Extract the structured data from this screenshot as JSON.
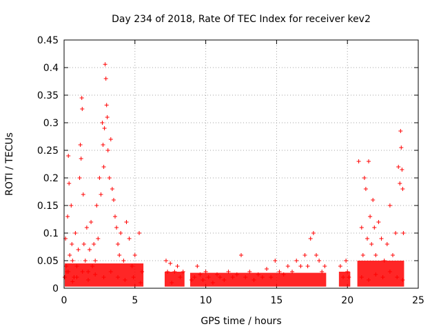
{
  "chart_data": {
    "type": "scatter",
    "title": "Day 234 of 2018, Rate Of TEC Index for receiver kev2",
    "xlabel": "GPS time / hours",
    "ylabel": "ROTI / TECUs",
    "xlim": [
      0,
      25
    ],
    "ylim": [
      0,
      0.45
    ],
    "xticks": [
      "0",
      "5",
      "10",
      "15",
      "20",
      "25"
    ],
    "yticks": [
      "0",
      "0.05",
      "0.1",
      "0.15",
      "0.2",
      "0.25",
      "0.3",
      "0.35",
      "0.4",
      "0.45"
    ],
    "grid": true,
    "marker": "+",
    "color": "#ff0000",
    "series": [
      {
        "points": [
          [
            0.05,
            0.02
          ],
          [
            0.1,
            0.09
          ],
          [
            0.15,
            0.04
          ],
          [
            0.2,
            0.03
          ],
          [
            0.25,
            0.13
          ],
          [
            0.3,
            0.24
          ],
          [
            0.35,
            0.19
          ],
          [
            0.4,
            0.06
          ],
          [
            0.5,
            0.15
          ],
          [
            0.55,
            0.08
          ],
          [
            0.6,
            0.05
          ],
          [
            0.7,
            0.02
          ],
          [
            0.8,
            0.1
          ],
          [
            0.9,
            0.04
          ],
          [
            1.0,
            0.07
          ],
          [
            1.1,
            0.2
          ],
          [
            1.15,
            0.26
          ],
          [
            1.2,
            0.235
          ],
          [
            1.25,
            0.345
          ],
          [
            1.28,
            0.325
          ],
          [
            1.35,
            0.17
          ],
          [
            1.4,
            0.08
          ],
          [
            1.5,
            0.05
          ],
          [
            1.6,
            0.11
          ],
          [
            1.7,
            0.03
          ],
          [
            1.8,
            0.07
          ],
          [
            1.9,
            0.12
          ],
          [
            2.0,
            0.04
          ],
          [
            2.1,
            0.08
          ],
          [
            2.2,
            0.05
          ],
          [
            2.3,
            0.15
          ],
          [
            2.4,
            0.09
          ],
          [
            2.5,
            0.2
          ],
          [
            2.6,
            0.17
          ],
          [
            2.7,
            0.3
          ],
          [
            2.75,
            0.26
          ],
          [
            2.8,
            0.22
          ],
          [
            2.85,
            0.29
          ],
          [
            2.9,
            0.406
          ],
          [
            2.95,
            0.38
          ],
          [
            3.0,
            0.332
          ],
          [
            3.05,
            0.31
          ],
          [
            3.1,
            0.25
          ],
          [
            3.2,
            0.2
          ],
          [
            3.3,
            0.27
          ],
          [
            3.4,
            0.18
          ],
          [
            3.5,
            0.16
          ],
          [
            3.6,
            0.13
          ],
          [
            3.7,
            0.11
          ],
          [
            3.8,
            0.08
          ],
          [
            3.9,
            0.06
          ],
          [
            4.0,
            0.1
          ],
          [
            4.2,
            0.05
          ],
          [
            4.4,
            0.12
          ],
          [
            4.6,
            0.09
          ],
          [
            4.8,
            0.04
          ],
          [
            5.0,
            0.06
          ],
          [
            5.3,
            0.1
          ],
          [
            5.5,
            0.03
          ],
          [
            0.3,
            0.03
          ],
          [
            0.6,
            0.012
          ],
          [
            0.9,
            0.02
          ],
          [
            1.3,
            0.03
          ],
          [
            1.7,
            0.015
          ],
          [
            2.2,
            0.025
          ],
          [
            2.8,
            0.02
          ],
          [
            3.3,
            0.03
          ],
          [
            3.8,
            0.02
          ],
          [
            4.3,
            0.015
          ],
          [
            4.9,
            0.02
          ],
          [
            5.4,
            0.01
          ],
          [
            7.2,
            0.05
          ],
          [
            7.3,
            0.03
          ],
          [
            7.5,
            0.045
          ],
          [
            7.6,
            0.01
          ],
          [
            7.8,
            0.03
          ],
          [
            8.0,
            0.04
          ],
          [
            8.2,
            0.02
          ],
          [
            8.4,
            0.03
          ],
          [
            9.0,
            0.015
          ],
          [
            9.2,
            0.02
          ],
          [
            9.4,
            0.04
          ],
          [
            9.6,
            0.025
          ],
          [
            9.8,
            0.015
          ],
          [
            10.0,
            0.03
          ],
          [
            10.2,
            0.02
          ],
          [
            10.5,
            0.01
          ],
          [
            10.8,
            0.025
          ],
          [
            11.0,
            0.02
          ],
          [
            11.3,
            0.015
          ],
          [
            11.6,
            0.03
          ],
          [
            11.9,
            0.02
          ],
          [
            12.2,
            0.025
          ],
          [
            12.5,
            0.06
          ],
          [
            12.8,
            0.02
          ],
          [
            13.1,
            0.03
          ],
          [
            13.4,
            0.015
          ],
          [
            13.7,
            0.025
          ],
          [
            14.0,
            0.02
          ],
          [
            14.3,
            0.035
          ],
          [
            14.6,
            0.02
          ],
          [
            14.9,
            0.05
          ],
          [
            15.2,
            0.03
          ],
          [
            15.5,
            0.025
          ],
          [
            15.8,
            0.04
          ],
          [
            16.1,
            0.03
          ],
          [
            16.4,
            0.05
          ],
          [
            16.7,
            0.04
          ],
          [
            17.0,
            0.06
          ],
          [
            17.2,
            0.04
          ],
          [
            17.4,
            0.09
          ],
          [
            17.6,
            0.1
          ],
          [
            17.8,
            0.06
          ],
          [
            18.0,
            0.05
          ],
          [
            18.2,
            0.03
          ],
          [
            18.4,
            0.04
          ],
          [
            19.5,
            0.04
          ],
          [
            19.7,
            0.02
          ],
          [
            19.9,
            0.05
          ],
          [
            20.0,
            0.03
          ],
          [
            20.1,
            0.02
          ],
          [
            20.8,
            0.23
          ],
          [
            21.0,
            0.11
          ],
          [
            21.1,
            0.06
          ],
          [
            21.2,
            0.2
          ],
          [
            21.3,
            0.18
          ],
          [
            21.4,
            0.09
          ],
          [
            21.5,
            0.23
          ],
          [
            21.6,
            0.13
          ],
          [
            21.7,
            0.08
          ],
          [
            21.8,
            0.16
          ],
          [
            21.9,
            0.11
          ],
          [
            22.0,
            0.06
          ],
          [
            22.2,
            0.12
          ],
          [
            22.4,
            0.09
          ],
          [
            22.6,
            0.05
          ],
          [
            22.8,
            0.08
          ],
          [
            23.0,
            0.15
          ],
          [
            23.2,
            0.06
          ],
          [
            23.4,
            0.1
          ],
          [
            23.6,
            0.22
          ],
          [
            23.7,
            0.19
          ],
          [
            23.75,
            0.285
          ],
          [
            23.8,
            0.255
          ],
          [
            23.85,
            0.215
          ],
          [
            23.9,
            0.18
          ],
          [
            23.95,
            0.1
          ],
          [
            21.0,
            0.02
          ],
          [
            21.5,
            0.015
          ],
          [
            22.0,
            0.025
          ],
          [
            22.5,
            0.02
          ],
          [
            23.0,
            0.03
          ],
          [
            23.5,
            0.02
          ],
          [
            23.9,
            0.015
          ]
        ]
      }
    ]
  }
}
